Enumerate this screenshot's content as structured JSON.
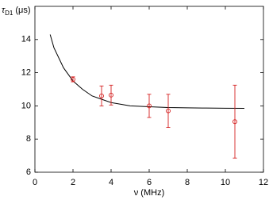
{
  "chart_data": {
    "type": "scatter",
    "ylabel": "τ",
    "ylabel_sub": "D1",
    "ylabel_unit": "(μs)",
    "xlabel": "ν (MHz)",
    "xlim": [
      0,
      12
    ],
    "ylim": [
      6,
      16
    ],
    "xticks": [
      0,
      2,
      4,
      6,
      8,
      10,
      12
    ],
    "yticks": [
      6,
      8,
      10,
      12,
      14
    ],
    "points": {
      "color": "#d42020",
      "x": [
        2,
        3.5,
        4,
        6,
        7,
        10.5
      ],
      "y": [
        11.6,
        10.6,
        10.65,
        10.0,
        9.7,
        9.05
      ],
      "err": [
        0.15,
        0.6,
        0.6,
        0.7,
        1.0,
        2.2
      ]
    },
    "fit": {
      "color": "#000000",
      "x": [
        0.8,
        1,
        1.5,
        2,
        2.5,
        3,
        4,
        5,
        6,
        7,
        8,
        9,
        10,
        11
      ],
      "y": [
        14.3,
        13.5,
        12.3,
        11.5,
        11.0,
        10.6,
        10.2,
        10.0,
        9.95,
        9.9,
        9.88,
        9.87,
        9.86,
        9.85
      ]
    }
  }
}
